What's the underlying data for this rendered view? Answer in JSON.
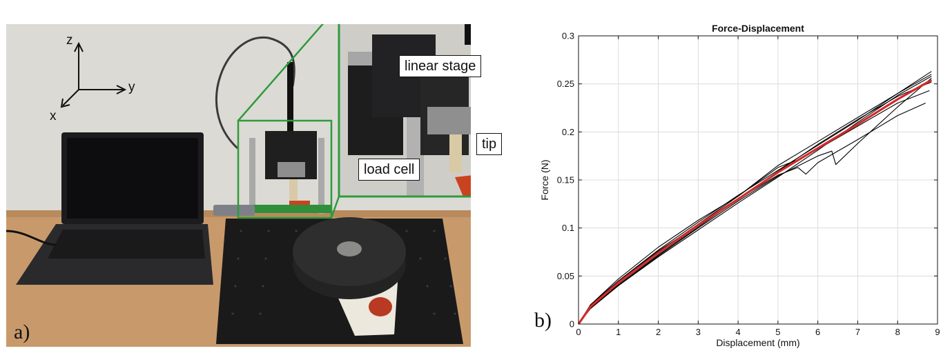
{
  "figure": {
    "panel_a_label": "a)",
    "panel_b_label": "b)"
  },
  "photo": {
    "callouts": {
      "linear_stage": "linear stage",
      "load_cell": "load cell",
      "tip": "tip"
    },
    "axes": {
      "z": "z",
      "y": "y",
      "x": "x"
    },
    "colors": {
      "zoom_frame": "#2e9a3c",
      "probe_tip": "#c9431f",
      "wall": "#dcdad5",
      "table": "#c89a6b"
    }
  },
  "chart_data": {
    "type": "line",
    "title": "Force-Displacement",
    "xlabel": "Displacement (mm)",
    "ylabel": "Force (N)",
    "xlim": [
      0,
      9
    ],
    "ylim": [
      0,
      0.3
    ],
    "xticks": [
      0,
      1,
      2,
      3,
      4,
      5,
      6,
      7,
      8,
      9
    ],
    "yticks": [
      0,
      0.05,
      0.1,
      0.15,
      0.2,
      0.25,
      0.3
    ],
    "xtick_labels": [
      "0",
      "1",
      "2",
      "3",
      "4",
      "5",
      "6",
      "7",
      "8",
      "9"
    ],
    "ytick_labels": [
      "0",
      "0.05",
      "0.1",
      "0.15",
      "0.2",
      "0.25",
      "0.3"
    ],
    "grid": true,
    "series": [
      {
        "color": "#000000",
        "x": [
          0,
          0.3,
          1,
          2,
          3,
          4,
          5,
          6,
          7,
          8,
          8.85
        ],
        "y": [
          0,
          0.02,
          0.045,
          0.077,
          0.106,
          0.134,
          0.16,
          0.186,
          0.212,
          0.24,
          0.263
        ]
      },
      {
        "color": "#000000",
        "x": [
          0,
          0.3,
          1,
          2,
          3,
          4,
          5,
          6,
          7,
          8,
          8.85
        ],
        "y": [
          0,
          0.017,
          0.04,
          0.07,
          0.098,
          0.126,
          0.153,
          0.181,
          0.21,
          0.238,
          0.258
        ]
      },
      {
        "color": "#000000",
        "x": [
          0,
          0.3,
          1,
          2,
          3,
          4,
          5,
          6,
          7,
          8,
          8.85
        ],
        "y": [
          0,
          0.019,
          0.044,
          0.076,
          0.103,
          0.13,
          0.159,
          0.187,
          0.213,
          0.237,
          0.252
        ]
      },
      {
        "color": "#000000",
        "x": [
          0,
          0.3,
          1,
          2,
          3,
          4,
          5,
          5.5,
          6,
          7,
          8,
          8.8
        ],
        "y": [
          0,
          0.018,
          0.043,
          0.075,
          0.104,
          0.133,
          0.163,
          0.171,
          0.182,
          0.206,
          0.23,
          0.243
        ]
      },
      {
        "color": "#000000",
        "x": [
          0,
          0.3,
          1,
          2,
          3,
          4,
          5,
          5.5,
          5.7,
          6,
          7,
          8,
          8.7
        ],
        "y": [
          0,
          0.017,
          0.041,
          0.072,
          0.101,
          0.13,
          0.155,
          0.163,
          0.156,
          0.168,
          0.192,
          0.217,
          0.23
        ]
      },
      {
        "color": "#000000",
        "x": [
          0,
          0.3,
          1,
          2,
          3,
          4,
          5,
          6,
          6.35,
          6.45,
          7,
          8,
          8.85
        ],
        "y": [
          0,
          0.016,
          0.04,
          0.071,
          0.1,
          0.128,
          0.154,
          0.175,
          0.18,
          0.166,
          0.188,
          0.226,
          0.256
        ]
      },
      {
        "color": "#000000",
        "x": [
          0,
          0.3,
          1,
          2,
          3,
          4,
          5,
          6,
          7,
          8,
          8.85
        ],
        "y": [
          0,
          0.02,
          0.047,
          0.08,
          0.108,
          0.133,
          0.165,
          0.19,
          0.215,
          0.24,
          0.26
        ]
      },
      {
        "color": "#d42a2a",
        "x": [
          0,
          0.3,
          1,
          2,
          3,
          4,
          5,
          6,
          7,
          8,
          8.85
        ],
        "y": [
          0,
          0.018,
          0.043,
          0.074,
          0.103,
          0.13,
          0.158,
          0.183,
          0.208,
          0.234,
          0.254
        ]
      }
    ]
  }
}
